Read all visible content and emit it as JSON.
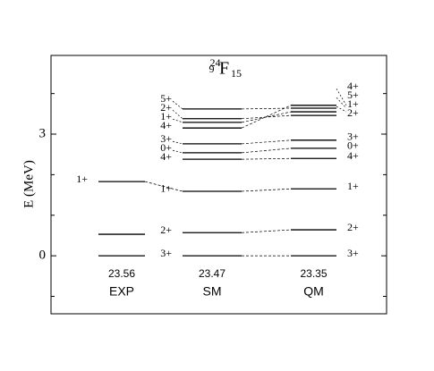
{
  "chart_data": {
    "type": "levels",
    "title": {
      "mass": "24",
      "z": "9",
      "symbol": "F",
      "n": "15"
    },
    "y_label": "E (MeV)",
    "ylim": [
      -1.43,
      4.94
    ],
    "yticks": [
      0,
      3
    ],
    "minor_yticks": [
      -1,
      1,
      2,
      4
    ],
    "columns": [
      {
        "name": "EXP",
        "number": 23.56,
        "labels_side": "left",
        "levels": [
          0,
          0.53,
          1.83
        ],
        "spins": [
          null,
          null,
          "1+"
        ]
      },
      {
        "name": "SM",
        "number": 23.47,
        "labels_side": "left",
        "levels": [
          0,
          0.57,
          1.59,
          2.38,
          2.54,
          2.76,
          3.15,
          3.29,
          3.38,
          3.62
        ],
        "spins": [
          "3+",
          "2+",
          "1+",
          "4+",
          "0+",
          "3+",
          "4+",
          "1+",
          "2+",
          "5+"
        ]
      },
      {
        "name": "QM",
        "number": 23.35,
        "labels_side": "right",
        "levels": [
          0,
          0.64,
          1.65,
          2.4,
          2.65,
          2.85,
          3.46,
          3.55,
          3.64,
          3.71
        ],
        "spins": [
          "3+",
          "2+",
          "1+",
          "4+",
          "0+",
          "3+",
          "2+",
          "1+",
          "5+",
          "4+"
        ]
      }
    ]
  }
}
